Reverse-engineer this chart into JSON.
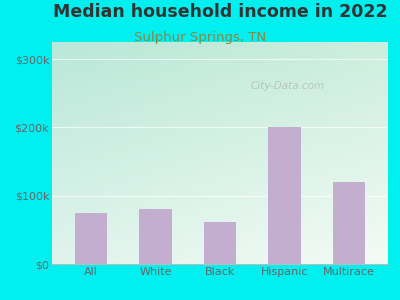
{
  "title": "Median household income in 2022",
  "subtitle": "Sulphur Springs, TN",
  "categories": [
    "All",
    "White",
    "Black",
    "Hispanic",
    "Multirace"
  ],
  "values": [
    75000,
    80000,
    62000,
    200000,
    120000
  ],
  "bar_color": "#c4aed0",
  "title_fontsize": 12.5,
  "subtitle_fontsize": 9.5,
  "subtitle_color": "#888844",
  "title_color": "#333333",
  "background_outer": "#00efef",
  "yticks": [
    0,
    100000,
    200000,
    300000
  ],
  "ytick_labels": [
    "$0",
    "$100k",
    "$200k",
    "$300k"
  ],
  "ylim": [
    0,
    325000
  ],
  "watermark": "City-Data.com",
  "tick_color": "#666666",
  "grid_color": "#ccddcc",
  "bg_top_left": "#b8e8d8",
  "bg_top_right": "#ddeedd",
  "bg_bottom_left": "#e0f0e8",
  "bg_bottom_right": "#f4faf4"
}
